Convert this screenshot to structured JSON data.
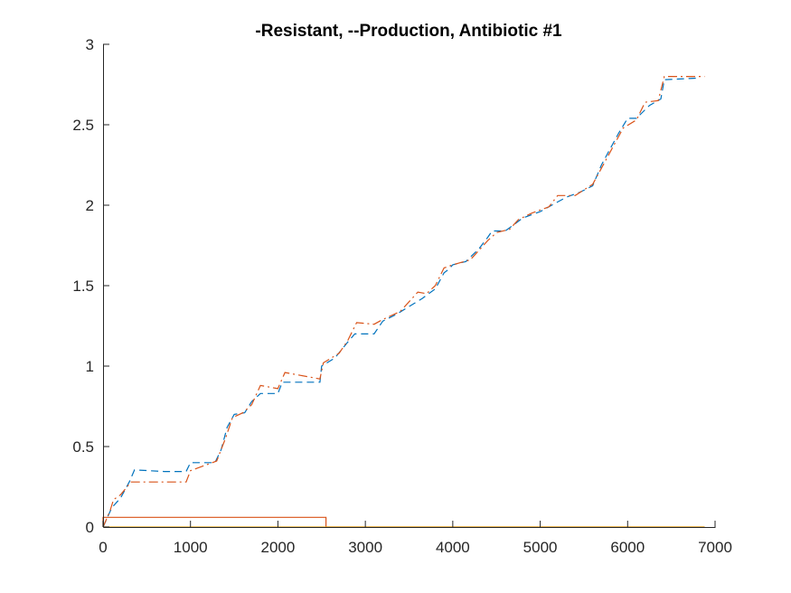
{
  "chart_data": {
    "type": "line",
    "title": "-Resistant, --Production, Antibiotic #1",
    "xlabel": "",
    "ylabel": "",
    "xlim": [
      0,
      7000
    ],
    "ylim": [
      0,
      3
    ],
    "xticks": [
      "0",
      "1000",
      "2000",
      "3000",
      "4000",
      "5000",
      "6000",
      "7000"
    ],
    "yticks": [
      "0",
      "0.5",
      "1",
      "1.5",
      "2",
      "2.5",
      "3"
    ],
    "grid": false,
    "legend": "none",
    "series": [
      {
        "style": "dashed",
        "color": "#0072BD",
        "points": [
          [
            0,
            0
          ],
          [
            100,
            0.12
          ],
          [
            200,
            0.18
          ],
          [
            300,
            0.28
          ],
          [
            360,
            0.355
          ],
          [
            700,
            0.345
          ],
          [
            950,
            0.345
          ],
          [
            1000,
            0.4
          ],
          [
            1280,
            0.4
          ],
          [
            1350,
            0.48
          ],
          [
            1420,
            0.62
          ],
          [
            1500,
            0.7
          ],
          [
            1620,
            0.71
          ],
          [
            1700,
            0.78
          ],
          [
            1800,
            0.83
          ],
          [
            2000,
            0.83
          ],
          [
            2050,
            0.9
          ],
          [
            2480,
            0.9
          ],
          [
            2500,
            1.0
          ],
          [
            2650,
            1.05
          ],
          [
            2800,
            1.15
          ],
          [
            2880,
            1.2
          ],
          [
            3100,
            1.2
          ],
          [
            3200,
            1.28
          ],
          [
            3350,
            1.32
          ],
          [
            3500,
            1.37
          ],
          [
            3650,
            1.42
          ],
          [
            3800,
            1.48
          ],
          [
            3900,
            1.58
          ],
          [
            3950,
            1.6
          ],
          [
            4000,
            1.63
          ],
          [
            4150,
            1.65
          ],
          [
            4300,
            1.73
          ],
          [
            4400,
            1.8
          ],
          [
            4450,
            1.84
          ],
          [
            4600,
            1.84
          ],
          [
            4700,
            1.88
          ],
          [
            4800,
            1.92
          ],
          [
            5000,
            1.96
          ],
          [
            5200,
            2.02
          ],
          [
            5300,
            2.05
          ],
          [
            5450,
            2.08
          ],
          [
            5600,
            2.12
          ],
          [
            5700,
            2.25
          ],
          [
            5800,
            2.35
          ],
          [
            5900,
            2.45
          ],
          [
            6000,
            2.54
          ],
          [
            6100,
            2.54
          ],
          [
            6250,
            2.62
          ],
          [
            6380,
            2.66
          ],
          [
            6420,
            2.78
          ],
          [
            6800,
            2.79
          ]
        ]
      },
      {
        "style": "dash-dot",
        "color": "#D95319",
        "points": [
          [
            0,
            0
          ],
          [
            80,
            0.1
          ],
          [
            120,
            0.17
          ],
          [
            200,
            0.2
          ],
          [
            320,
            0.28
          ],
          [
            950,
            0.28
          ],
          [
            1000,
            0.35
          ],
          [
            1300,
            0.41
          ],
          [
            1400,
            0.55
          ],
          [
            1480,
            0.68
          ],
          [
            1600,
            0.71
          ],
          [
            1700,
            0.76
          ],
          [
            1800,
            0.88
          ],
          [
            2000,
            0.86
          ],
          [
            2080,
            0.96
          ],
          [
            2480,
            0.92
          ],
          [
            2520,
            1.02
          ],
          [
            2700,
            1.08
          ],
          [
            2800,
            1.16
          ],
          [
            2900,
            1.27
          ],
          [
            3100,
            1.26
          ],
          [
            3200,
            1.29
          ],
          [
            3400,
            1.34
          ],
          [
            3600,
            1.46
          ],
          [
            3700,
            1.45
          ],
          [
            3800,
            1.5
          ],
          [
            3900,
            1.61
          ],
          [
            4000,
            1.63
          ],
          [
            4200,
            1.66
          ],
          [
            4300,
            1.72
          ],
          [
            4400,
            1.78
          ],
          [
            4500,
            1.83
          ],
          [
            4650,
            1.85
          ],
          [
            4750,
            1.91
          ],
          [
            4900,
            1.95
          ],
          [
            5100,
            1.99
          ],
          [
            5200,
            2.06
          ],
          [
            5400,
            2.06
          ],
          [
            5600,
            2.13
          ],
          [
            5700,
            2.23
          ],
          [
            5800,
            2.33
          ],
          [
            5950,
            2.48
          ],
          [
            6100,
            2.53
          ],
          [
            6200,
            2.64
          ],
          [
            6350,
            2.65
          ],
          [
            6420,
            2.8
          ],
          [
            6880,
            2.8
          ]
        ]
      },
      {
        "style": "solid",
        "color": "#D95319",
        "points": [
          [
            0,
            0
          ],
          [
            0,
            0.06
          ],
          [
            2550,
            0.06
          ],
          [
            2550,
            0
          ],
          [
            6880,
            0
          ]
        ]
      },
      {
        "style": "solid",
        "color": "#EDB120",
        "points": [
          [
            0,
            0
          ],
          [
            6880,
            0
          ]
        ]
      }
    ]
  }
}
